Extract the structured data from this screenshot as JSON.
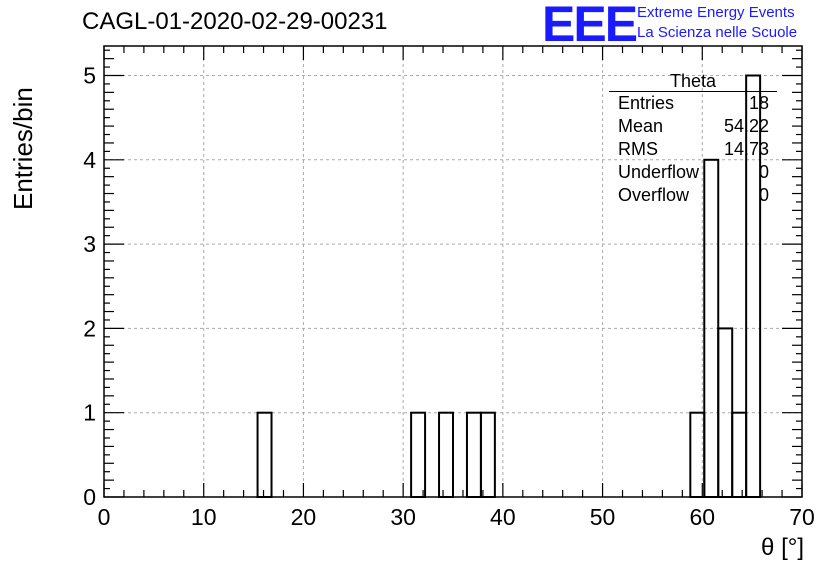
{
  "title": "CAGL-01-2020-02-29-00231",
  "logo": {
    "mark": "EEE",
    "line1": "Extreme Energy Events",
    "line2": "La Scienza nelle Scuole",
    "color": "#1a1aff"
  },
  "stats_box": {
    "title": "Theta",
    "rows": [
      {
        "label": "Entries",
        "value": "18"
      },
      {
        "label": "Mean",
        "value": "54.22"
      },
      {
        "label": "RMS",
        "value": "14.73"
      },
      {
        "label": "Underflow",
        "value": "0"
      },
      {
        "label": "Overflow",
        "value": "0"
      }
    ]
  },
  "chart_data": {
    "type": "bar",
    "style": "step-histogram",
    "xlabel": "θ [°]",
    "ylabel": "Entries/bin",
    "xlim": [
      0,
      70
    ],
    "ylim": [
      0,
      5.35
    ],
    "xticks": [
      0,
      10,
      20,
      30,
      40,
      50,
      60,
      70
    ],
    "yticks": [
      0,
      1,
      2,
      3,
      4,
      5
    ],
    "grid": true,
    "bin_width": 1.4,
    "bins": [
      {
        "x0": 15.4,
        "x1": 16.8,
        "count": 1
      },
      {
        "x0": 30.8,
        "x1": 32.2,
        "count": 1
      },
      {
        "x0": 33.6,
        "x1": 35.0,
        "count": 1
      },
      {
        "x0": 36.4,
        "x1": 37.8,
        "count": 1
      },
      {
        "x0": 37.8,
        "x1": 39.2,
        "count": 1
      },
      {
        "x0": 58.8,
        "x1": 60.2,
        "count": 1
      },
      {
        "x0": 60.2,
        "x1": 61.6,
        "count": 4
      },
      {
        "x0": 61.6,
        "x1": 63.0,
        "count": 2
      },
      {
        "x0": 63.0,
        "x1": 64.4,
        "count": 1
      },
      {
        "x0": 64.4,
        "x1": 65.8,
        "count": 5
      }
    ]
  }
}
